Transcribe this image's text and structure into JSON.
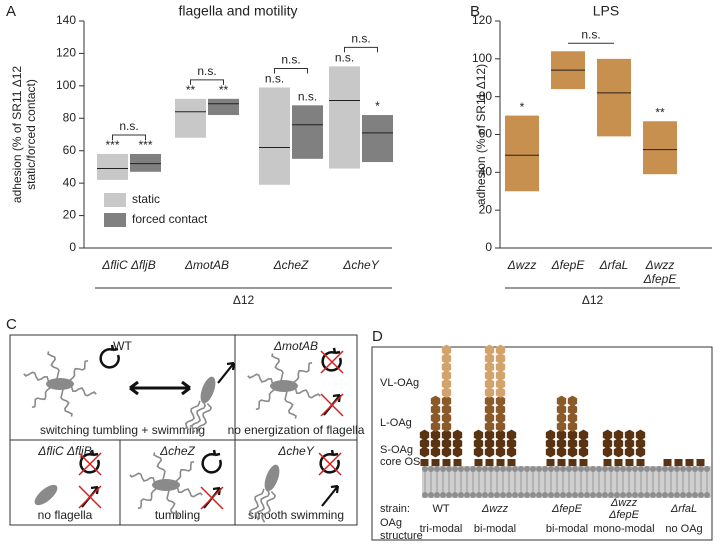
{
  "chart_data": [
    {
      "type": "box",
      "label": "A",
      "title": "flagella and motility",
      "y_label": [
        "adhesion (% of SR11 Δ12",
        "static/forced contact)"
      ],
      "categories": [
        "ΔfliC ΔfljB",
        "ΔmotAB",
        "ΔcheZ",
        "ΔcheY"
      ],
      "group_label": "Δ12",
      "ylim": [
        0,
        140
      ],
      "yticks": [
        0,
        20,
        40,
        60,
        80,
        100,
        120,
        140
      ],
      "legend": "lower left",
      "series": [
        {
          "name": "static",
          "color": "#c8c8c8",
          "low": [
            42,
            68,
            39,
            49
          ],
          "high": [
            58,
            92,
            99,
            112
          ],
          "median": [
            49,
            84,
            62,
            91
          ],
          "annotations": [
            "***",
            "**",
            "n.s.",
            "n.s."
          ]
        },
        {
          "name": "forced contact",
          "color": "#808080",
          "low": [
            47,
            82,
            55,
            53
          ],
          "high": [
            58,
            92,
            88,
            82
          ],
          "median": [
            52,
            89,
            76,
            71
          ],
          "annotations": [
            "***",
            "**",
            "n.s.",
            "*"
          ]
        }
      ],
      "series_brackets": [
        "n.s.",
        "n.s.",
        "n.s.",
        "n.s."
      ]
    },
    {
      "type": "box",
      "label": "B",
      "title": "LPS",
      "y_label": [
        "adhesion (% of SR11 Δ12)"
      ],
      "categories": [
        "Δwzz",
        "ΔfepE",
        "ΔrfaL",
        "Δwzz ΔfepE"
      ],
      "group_label": "Δ12",
      "ylim": [
        0,
        120
      ],
      "yticks": [
        0,
        20,
        40,
        60,
        80,
        100,
        120
      ],
      "series": [
        {
          "color": "#c8904f",
          "low": [
            30,
            84,
            59,
            39
          ],
          "high": [
            70,
            104,
            100,
            67
          ],
          "median": [
            49,
            94,
            82,
            52
          ],
          "annotations": [
            "*",
            null,
            null,
            "**"
          ]
        }
      ],
      "category_brackets": [
        {
          "between": [
            1,
            2
          ],
          "label": "n.s."
        }
      ]
    }
  ],
  "panel_c": {
    "label": "C",
    "cells": [
      {
        "strain": "WT",
        "caption": "switching tumbling + swimming"
      },
      {
        "strain": "ΔmotAB",
        "caption": "no energization of flagella"
      },
      {
        "strain": "ΔfliC ΔfljB",
        "caption": "no flagella"
      },
      {
        "strain": "ΔcheZ",
        "caption": "tumbling"
      },
      {
        "strain": "ΔcheY",
        "caption": "smooth swimming"
      }
    ]
  },
  "panel_d": {
    "label": "D",
    "layer_labels": [
      "VL-OAg",
      "L-OAg",
      "S-OAg",
      "core OS"
    ],
    "row_labels": [
      "strain:",
      "OAg structure"
    ],
    "strains": [
      {
        "name": "WT",
        "structure": "tri-modal"
      },
      {
        "name": "Δwzz",
        "structure": "bi-modal"
      },
      {
        "name": "ΔfepE",
        "structure": "bi-modal"
      },
      {
        "name": "Δwzz ΔfepE",
        "structure": "mono-modal"
      },
      {
        "name": "ΔrfaL",
        "structure": "no OAg"
      }
    ]
  }
}
